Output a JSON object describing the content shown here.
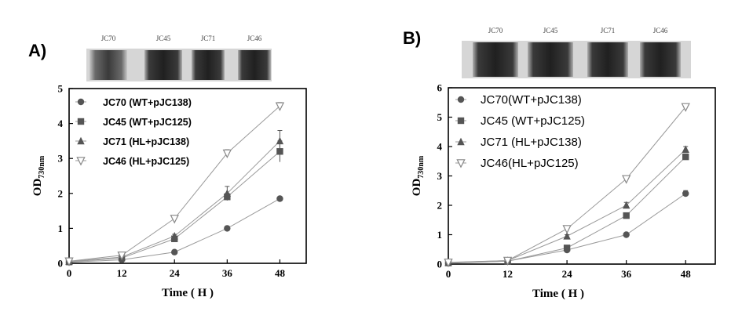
{
  "chart_data": [
    {
      "panel": "A)",
      "type": "line",
      "xlabel": "Time ( H )",
      "ylabel": "OD",
      "ylabel_sub": "730nm",
      "xlim": [
        0,
        54
      ],
      "ylim": [
        0,
        5
      ],
      "xticks": [
        0,
        12,
        24,
        36,
        48
      ],
      "yticks": [
        0,
        1,
        2,
        3,
        4,
        5
      ],
      "x": [
        0,
        12,
        24,
        36,
        48
      ],
      "culture_labels": [
        "JC70",
        "JC45",
        "JC71",
        "JC46"
      ],
      "legend_position": "top-left",
      "series": [
        {
          "name": "JC70 (WT+pJC138)",
          "marker": "circle",
          "color": "#555555",
          "values": [
            0.03,
            0.1,
            0.32,
            1.0,
            1.85
          ],
          "errors": [
            0,
            0,
            0.05,
            0.05,
            0.05
          ]
        },
        {
          "name": "JC45 (WT+pJC125)",
          "marker": "square",
          "color": "#555555",
          "values": [
            0.04,
            0.15,
            0.7,
            1.9,
            3.2
          ],
          "errors": [
            0,
            0,
            0.05,
            0.1,
            0.3
          ]
        },
        {
          "name": "JC71 (HL+pJC138)",
          "marker": "triangle",
          "color": "#555555",
          "values": [
            0.05,
            0.18,
            0.78,
            2.0,
            3.5
          ],
          "errors": [
            0,
            0,
            0.05,
            0.2,
            0.3
          ]
        },
        {
          "name": "JC46 (HL+pJC125)",
          "marker": "triangle-down",
          "color": "#888888",
          "values": [
            0.06,
            0.23,
            1.28,
            3.15,
            4.5
          ],
          "errors": [
            0,
            0,
            0.05,
            0.1,
            0.1
          ]
        }
      ]
    },
    {
      "panel": "B)",
      "type": "line",
      "xlabel": "Time ( H )",
      "ylabel": "OD",
      "ylabel_sub": "730nm",
      "xlim": [
        0,
        54
      ],
      "ylim": [
        0,
        6
      ],
      "xticks": [
        0,
        12,
        24,
        36,
        48
      ],
      "yticks": [
        0,
        1,
        2,
        3,
        4,
        5,
        6
      ],
      "x": [
        0,
        12,
        24,
        36,
        48
      ],
      "culture_labels": [
        "JC70",
        "JC45",
        "JC71",
        "JC46"
      ],
      "legend_position": "top-left",
      "series": [
        {
          "name": "JC70(WT+pJC138)",
          "marker": "circle",
          "color": "#555555",
          "values": [
            0.03,
            0.1,
            0.48,
            1.0,
            2.4
          ],
          "errors": [
            0,
            0,
            0.05,
            0.05,
            0.1
          ]
        },
        {
          "name": "JC45 (WT+pJC125)",
          "marker": "square",
          "color": "#555555",
          "values": [
            0.04,
            0.1,
            0.55,
            1.65,
            3.65
          ],
          "errors": [
            0,
            0,
            0.05,
            0.05,
            0.1
          ]
        },
        {
          "name": "JC71 (HL+pJC138)",
          "marker": "triangle",
          "color": "#555555",
          "values": [
            0.05,
            0.12,
            0.95,
            2.0,
            3.9
          ],
          "errors": [
            0,
            0,
            0.05,
            0.1,
            0.1
          ]
        },
        {
          "name": "JC46(HL+pJC125)",
          "marker": "triangle-down",
          "color": "#888888",
          "values": [
            0.06,
            0.12,
            1.2,
            2.9,
            5.35
          ],
          "errors": [
            0,
            0,
            0.05,
            0.05,
            0.1
          ]
        }
      ]
    }
  ]
}
